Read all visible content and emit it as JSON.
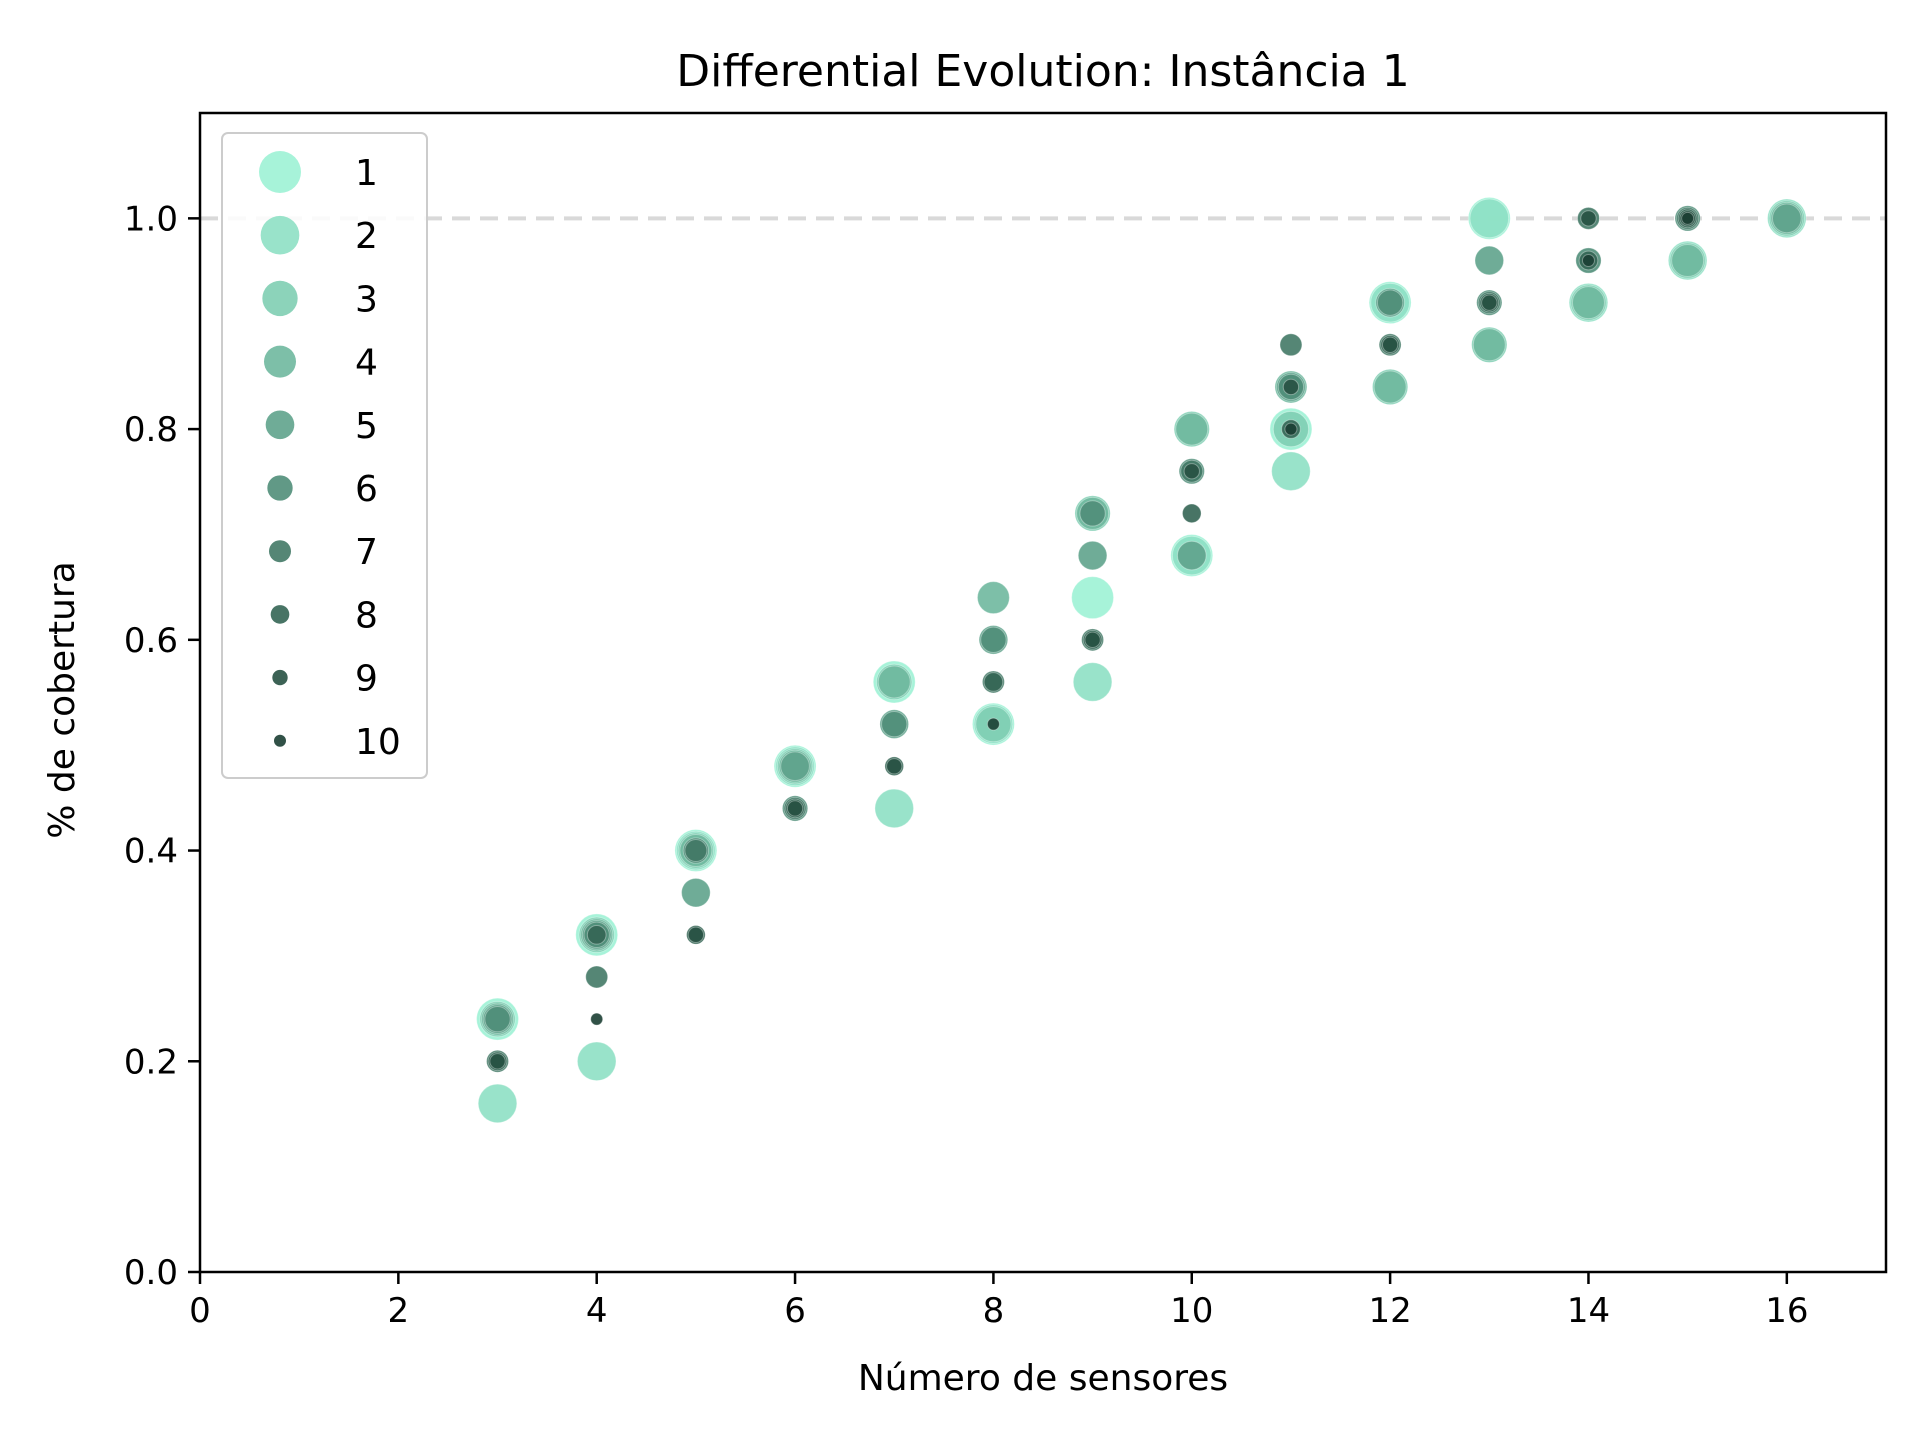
{
  "chart_data": {
    "type": "scatter",
    "title": "Differential Evolution: Instância 1",
    "xlabel": "Número de sensores",
    "ylabel": "% de cobertura",
    "xlim": [
      0,
      17
    ],
    "ylim": [
      0,
      1.1
    ],
    "xticks": [
      "0",
      "2",
      "4",
      "6",
      "8",
      "10",
      "12",
      "14",
      "16"
    ],
    "yticks": [
      "0.0",
      "0.2",
      "0.4",
      "0.6",
      "0.8",
      "1.0"
    ],
    "reference_line": {
      "y": 1.0,
      "style": "dashed",
      "color": "#d9d9d9"
    },
    "grid": false,
    "legend": {
      "position": "top-left"
    },
    "series": [
      {
        "name": "1",
        "color": "#9df2d5",
        "points": [
          [
            3,
            0.24
          ],
          [
            4,
            0.32
          ],
          [
            5,
            0.4
          ],
          [
            6,
            0.48
          ],
          [
            7,
            0.56
          ],
          [
            8,
            0.52
          ],
          [
            9,
            0.64
          ],
          [
            10,
            0.68
          ],
          [
            11,
            0.8
          ],
          [
            12,
            0.92
          ],
          [
            13,
            1.0
          ]
        ]
      },
      {
        "name": "2",
        "color": "#8ee0c4",
        "points": [
          [
            3,
            0.16
          ],
          [
            4,
            0.2
          ],
          [
            5,
            0.4
          ],
          [
            6,
            0.48
          ],
          [
            7,
            0.44
          ],
          [
            8,
            0.52
          ],
          [
            9,
            0.56
          ],
          [
            10,
            0.68
          ],
          [
            11,
            0.76
          ],
          [
            12,
            0.92
          ],
          [
            13,
            1.0
          ],
          [
            14,
            0.92
          ],
          [
            15,
            0.96
          ],
          [
            16,
            1.0
          ]
        ]
      },
      {
        "name": "3",
        "color": "#7fceb3",
        "points": [
          [
            3,
            0.24
          ],
          [
            4,
            0.32
          ],
          [
            5,
            0.4
          ],
          [
            6,
            0.48
          ],
          [
            7,
            0.56
          ],
          [
            8,
            0.52
          ],
          [
            9,
            0.72
          ],
          [
            10,
            0.8
          ],
          [
            11,
            0.8
          ],
          [
            12,
            0.84
          ],
          [
            13,
            0.88
          ],
          [
            14,
            0.92
          ],
          [
            15,
            0.96
          ],
          [
            16,
            1.0
          ]
        ]
      },
      {
        "name": "4",
        "color": "#6fb89f",
        "points": [
          [
            3,
            0.24
          ],
          [
            4,
            0.32
          ],
          [
            5,
            0.4
          ],
          [
            6,
            0.48
          ],
          [
            7,
            0.56
          ],
          [
            8,
            0.64
          ],
          [
            9,
            0.72
          ],
          [
            10,
            0.8
          ],
          [
            11,
            0.84
          ],
          [
            12,
            0.84
          ],
          [
            13,
            0.88
          ],
          [
            14,
            0.92
          ],
          [
            15,
            0.96
          ],
          [
            16,
            1.0
          ]
        ]
      },
      {
        "name": "5",
        "color": "#5fa38c",
        "points": [
          [
            3,
            0.24
          ],
          [
            4,
            0.32
          ],
          [
            5,
            0.36
          ],
          [
            6,
            0.48
          ],
          [
            7,
            0.52
          ],
          [
            8,
            0.6
          ],
          [
            9,
            0.68
          ],
          [
            10,
            0.68
          ],
          [
            11,
            0.84
          ],
          [
            12,
            0.92
          ],
          [
            13,
            0.96
          ],
          [
            16,
            1.0
          ]
        ]
      },
      {
        "name": "6",
        "color": "#508e79",
        "points": [
          [
            3,
            0.24
          ],
          [
            4,
            0.32
          ],
          [
            5,
            0.4
          ],
          [
            6,
            0.44
          ],
          [
            7,
            0.52
          ],
          [
            8,
            0.6
          ],
          [
            9,
            0.72
          ],
          [
            10,
            0.76
          ],
          [
            11,
            0.84
          ],
          [
            12,
            0.92
          ],
          [
            13,
            0.92
          ],
          [
            14,
            0.96
          ],
          [
            15,
            1.0
          ]
        ]
      },
      {
        "name": "7",
        "color": "#427966",
        "points": [
          [
            3,
            0.2
          ],
          [
            4,
            0.28
          ],
          [
            5,
            0.4
          ],
          [
            6,
            0.44
          ],
          [
            8,
            0.56
          ],
          [
            9,
            0.6
          ],
          [
            10,
            0.76
          ],
          [
            11,
            0.88
          ],
          [
            12,
            0.88
          ],
          [
            13,
            0.92
          ],
          [
            14,
            1.0
          ],
          [
            15,
            1.0
          ]
        ]
      },
      {
        "name": "8",
        "color": "#346554",
        "points": [
          [
            3,
            0.2
          ],
          [
            4,
            0.32
          ],
          [
            5,
            0.32
          ],
          [
            6,
            0.44
          ],
          [
            7,
            0.48
          ],
          [
            8,
            0.56
          ],
          [
            9,
            0.6
          ],
          [
            10,
            0.72
          ],
          [
            11,
            0.8
          ],
          [
            12,
            0.88
          ],
          [
            13,
            0.92
          ],
          [
            14,
            0.96
          ],
          [
            15,
            1.0
          ]
        ]
      },
      {
        "name": "9",
        "color": "#275143",
        "points": [
          [
            3,
            0.2
          ],
          [
            5,
            0.32
          ],
          [
            6,
            0.44
          ],
          [
            7,
            0.48
          ],
          [
            9,
            0.6
          ],
          [
            10,
            0.76
          ],
          [
            11,
            0.84
          ],
          [
            12,
            0.88
          ],
          [
            13,
            0.92
          ],
          [
            14,
            1.0
          ],
          [
            15,
            1.0
          ]
        ]
      },
      {
        "name": "10",
        "color": "#1b3e33",
        "points": [
          [
            4,
            0.24
          ],
          [
            8,
            0.52
          ],
          [
            11,
            0.8
          ],
          [
            14,
            0.96
          ],
          [
            15,
            1.0
          ]
        ]
      }
    ]
  }
}
